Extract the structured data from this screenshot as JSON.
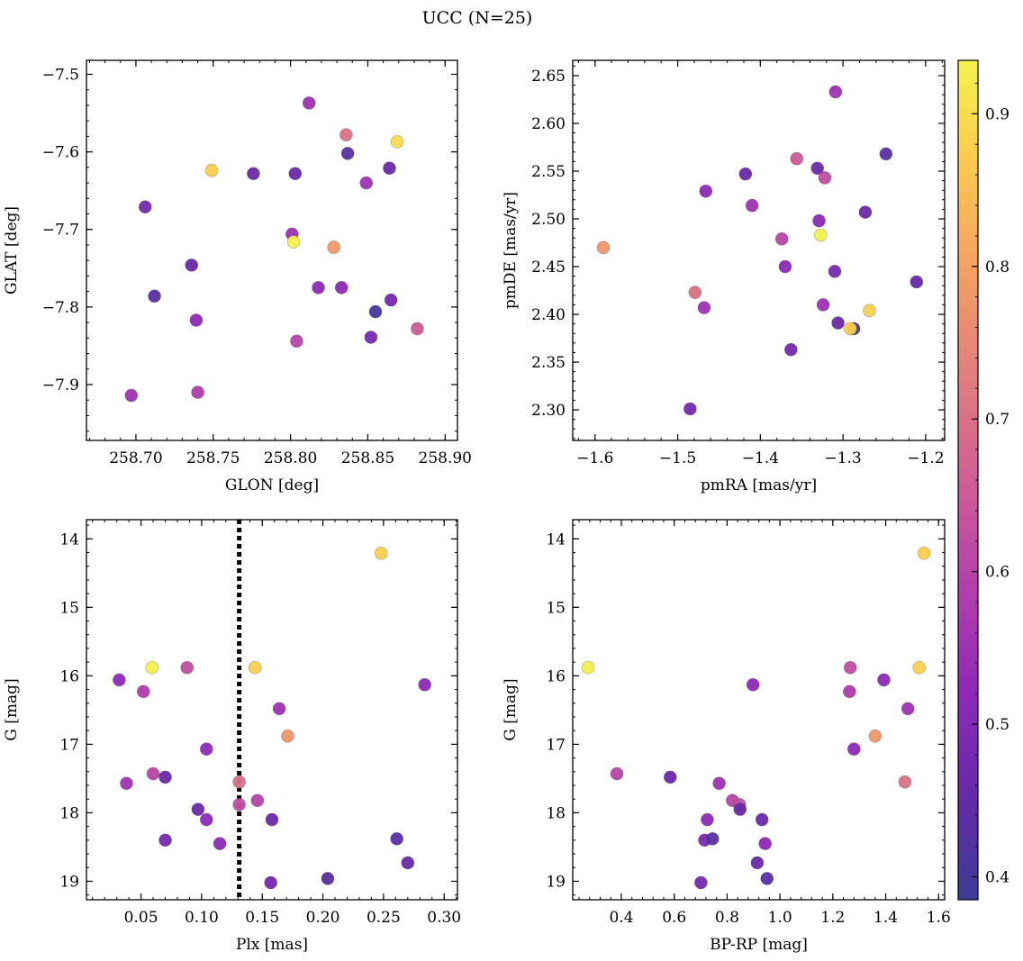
{
  "figure": {
    "title": "UCC (N=25)"
  },
  "colorbar": {
    "ticks": [
      "0.4",
      "0.5",
      "0.6",
      "0.7",
      "0.8",
      "0.9"
    ],
    "tick_values": [
      0.4,
      0.5,
      0.6,
      0.7,
      0.8,
      0.9
    ],
    "vmin": 0.385,
    "vmax": 0.935,
    "cmap_stops": [
      "#3c3c96",
      "#6629a8",
      "#8e2ab8",
      "#b440ab",
      "#cf5f95",
      "#e17e7e",
      "#f3a064",
      "#fdc84f",
      "#f5f24e"
    ]
  },
  "chart_data": [
    {
      "type": "scatter",
      "xlabel": "GLON [deg]",
      "ylabel": "GLAT [deg]",
      "xlim": [
        258.668,
        258.908
      ],
      "ylim": [
        -7.972,
        -7.482
      ],
      "xticks": [
        258.7,
        258.75,
        258.8,
        258.85,
        258.9
      ],
      "xtick_labels": [
        "258.70",
        "258.75",
        "258.80",
        "258.85",
        "258.90"
      ],
      "yticks": [
        -7.5,
        -7.6,
        -7.7,
        -7.8,
        -7.9
      ],
      "ytick_labels": [
        "−7.5",
        "−7.6",
        "−7.7",
        "−7.8",
        "−7.9"
      ],
      "y_inverted": false,
      "points": [
        {
          "x": 258.812,
          "y": -7.537,
          "c": 0.55
        },
        {
          "x": 258.836,
          "y": -7.578,
          "c": 0.7
        },
        {
          "x": 258.869,
          "y": -7.587,
          "c": 0.9
        },
        {
          "x": 258.837,
          "y": -7.602,
          "c": 0.43
        },
        {
          "x": 258.749,
          "y": -7.624,
          "c": 0.88
        },
        {
          "x": 258.776,
          "y": -7.628,
          "c": 0.46
        },
        {
          "x": 258.803,
          "y": -7.628,
          "c": 0.46
        },
        {
          "x": 258.864,
          "y": -7.621,
          "c": 0.46
        },
        {
          "x": 258.849,
          "y": -7.64,
          "c": 0.55
        },
        {
          "x": 258.706,
          "y": -7.671,
          "c": 0.48
        },
        {
          "x": 258.801,
          "y": -7.706,
          "c": 0.55
        },
        {
          "x": 258.802,
          "y": -7.716,
          "c": 0.93
        },
        {
          "x": 258.828,
          "y": -7.723,
          "c": 0.78
        },
        {
          "x": 258.736,
          "y": -7.746,
          "c": 0.46
        },
        {
          "x": 258.818,
          "y": -7.775,
          "c": 0.52
        },
        {
          "x": 258.833,
          "y": -7.775,
          "c": 0.52
        },
        {
          "x": 258.712,
          "y": -7.786,
          "c": 0.43
        },
        {
          "x": 258.865,
          "y": -7.791,
          "c": 0.48
        },
        {
          "x": 258.855,
          "y": -7.806,
          "c": 0.4
        },
        {
          "x": 258.739,
          "y": -7.817,
          "c": 0.52
        },
        {
          "x": 258.852,
          "y": -7.839,
          "c": 0.48
        },
        {
          "x": 258.804,
          "y": -7.844,
          "c": 0.6
        },
        {
          "x": 258.882,
          "y": -7.828,
          "c": 0.65
        },
        {
          "x": 258.74,
          "y": -7.91,
          "c": 0.58
        },
        {
          "x": 258.697,
          "y": -7.914,
          "c": 0.55
        }
      ]
    },
    {
      "type": "scatter",
      "xlabel": "pmRA [mas/yr]",
      "ylabel": "pmDE [mas/yr]",
      "xlim": [
        -1.627,
        -1.177
      ],
      "ylim": [
        2.268,
        2.666
      ],
      "xticks": [
        -1.6,
        -1.5,
        -1.4,
        -1.3,
        -1.2
      ],
      "xtick_labels": [
        "−1.6",
        "−1.5",
        "−1.4",
        "−1.3",
        "−1.2"
      ],
      "yticks": [
        2.3,
        2.35,
        2.4,
        2.45,
        2.5,
        2.55,
        2.6,
        2.65
      ],
      "ytick_labels": [
        "2.30",
        "2.35",
        "2.40",
        "2.45",
        "2.50",
        "2.55",
        "2.60",
        "2.65"
      ],
      "y_inverted": false,
      "points": [
        {
          "x": -1.309,
          "y": 2.633,
          "c": 0.55
        },
        {
          "x": -1.248,
          "y": 2.568,
          "c": 0.43
        },
        {
          "x": -1.356,
          "y": 2.563,
          "c": 0.65
        },
        {
          "x": -1.418,
          "y": 2.547,
          "c": 0.46
        },
        {
          "x": -1.331,
          "y": 2.553,
          "c": 0.46
        },
        {
          "x": -1.322,
          "y": 2.543,
          "c": 0.62
        },
        {
          "x": -1.466,
          "y": 2.529,
          "c": 0.52
        },
        {
          "x": -1.41,
          "y": 2.514,
          "c": 0.55
        },
        {
          "x": -1.273,
          "y": 2.507,
          "c": 0.46
        },
        {
          "x": -1.329,
          "y": 2.498,
          "c": 0.52
        },
        {
          "x": -1.327,
          "y": 2.483,
          "c": 0.93
        },
        {
          "x": -1.374,
          "y": 2.479,
          "c": 0.6
        },
        {
          "x": -1.59,
          "y": 2.47,
          "c": 0.78
        },
        {
          "x": -1.37,
          "y": 2.45,
          "c": 0.52
        },
        {
          "x": -1.31,
          "y": 2.445,
          "c": 0.48
        },
        {
          "x": -1.211,
          "y": 2.434,
          "c": 0.46
        },
        {
          "x": -1.479,
          "y": 2.423,
          "c": 0.7
        },
        {
          "x": -1.324,
          "y": 2.41,
          "c": 0.55
        },
        {
          "x": -1.468,
          "y": 2.407,
          "c": 0.55
        },
        {
          "x": -1.268,
          "y": 2.404,
          "c": 0.88
        },
        {
          "x": -1.306,
          "y": 2.391,
          "c": 0.46
        },
        {
          "x": -1.287,
          "y": 2.385,
          "c": 0.4
        },
        {
          "x": -1.291,
          "y": 2.385,
          "c": 0.88
        },
        {
          "x": -1.363,
          "y": 2.363,
          "c": 0.48
        },
        {
          "x": -1.485,
          "y": 2.301,
          "c": 0.48
        }
      ]
    },
    {
      "type": "scatter",
      "xlabel": "Plx [mas]",
      "ylabel": "G [mag]",
      "xlim": [
        0.005,
        0.311
      ],
      "ylim": [
        19.27,
        13.72
      ],
      "xticks": [
        0.05,
        0.1,
        0.15,
        0.2,
        0.25,
        0.3
      ],
      "xtick_labels": [
        "0.05",
        "0.10",
        "0.15",
        "0.20",
        "0.25",
        "0.30"
      ],
      "yticks": [
        14,
        15,
        16,
        17,
        18,
        19
      ],
      "ytick_labels": [
        "14",
        "15",
        "16",
        "17",
        "18",
        "19"
      ],
      "y_inverted": true,
      "vline": 0.131,
      "points": [
        {
          "x": 0.248,
          "y": 14.21,
          "c": 0.88
        },
        {
          "x": 0.059,
          "y": 15.88,
          "c": 0.93
        },
        {
          "x": 0.088,
          "y": 15.88,
          "c": 0.62
        },
        {
          "x": 0.144,
          "y": 15.88,
          "c": 0.88
        },
        {
          "x": 0.032,
          "y": 16.06,
          "c": 0.52
        },
        {
          "x": 0.052,
          "y": 16.23,
          "c": 0.58
        },
        {
          "x": 0.164,
          "y": 16.48,
          "c": 0.55
        },
        {
          "x": 0.284,
          "y": 16.13,
          "c": 0.52
        },
        {
          "x": 0.171,
          "y": 16.88,
          "c": 0.78
        },
        {
          "x": 0.104,
          "y": 17.07,
          "c": 0.52
        },
        {
          "x": 0.06,
          "y": 17.43,
          "c": 0.6
        },
        {
          "x": 0.07,
          "y": 17.48,
          "c": 0.46
        },
        {
          "x": 0.038,
          "y": 17.57,
          "c": 0.55
        },
        {
          "x": 0.131,
          "y": 17.55,
          "c": 0.7
        },
        {
          "x": 0.146,
          "y": 17.82,
          "c": 0.6
        },
        {
          "x": 0.131,
          "y": 17.88,
          "c": 0.62
        },
        {
          "x": 0.097,
          "y": 17.95,
          "c": 0.46
        },
        {
          "x": 0.104,
          "y": 18.1,
          "c": 0.52
        },
        {
          "x": 0.158,
          "y": 18.1,
          "c": 0.46
        },
        {
          "x": 0.07,
          "y": 18.4,
          "c": 0.48
        },
        {
          "x": 0.115,
          "y": 18.45,
          "c": 0.52
        },
        {
          "x": 0.261,
          "y": 18.38,
          "c": 0.43
        },
        {
          "x": 0.27,
          "y": 18.73,
          "c": 0.46
        },
        {
          "x": 0.157,
          "y": 19.02,
          "c": 0.48
        },
        {
          "x": 0.204,
          "y": 18.96,
          "c": 0.43
        }
      ]
    },
    {
      "type": "scatter",
      "xlabel": "BP-RP [mag]",
      "ylabel": "G [mag]",
      "xlim": [
        0.216,
        1.623
      ],
      "ylim": [
        19.27,
        13.72
      ],
      "xticks": [
        0.4,
        0.6,
        0.8,
        1.0,
        1.2,
        1.4,
        1.6
      ],
      "xtick_labels": [
        "0.4",
        "0.6",
        "0.8",
        "1.0",
        "1.2",
        "1.4",
        "1.6"
      ],
      "yticks": [
        14,
        15,
        16,
        17,
        18,
        19
      ],
      "ytick_labels": [
        "14",
        "15",
        "16",
        "17",
        "18",
        "19"
      ],
      "y_inverted": true,
      "points": [
        {
          "x": 1.545,
          "y": 14.21,
          "c": 0.88
        },
        {
          "x": 0.274,
          "y": 15.88,
          "c": 0.93
        },
        {
          "x": 1.266,
          "y": 15.88,
          "c": 0.62
        },
        {
          "x": 1.527,
          "y": 15.88,
          "c": 0.88
        },
        {
          "x": 0.898,
          "y": 16.13,
          "c": 0.52
        },
        {
          "x": 1.393,
          "y": 16.06,
          "c": 0.52
        },
        {
          "x": 1.263,
          "y": 16.23,
          "c": 0.58
        },
        {
          "x": 1.484,
          "y": 16.48,
          "c": 0.55
        },
        {
          "x": 1.36,
          "y": 16.88,
          "c": 0.78
        },
        {
          "x": 1.28,
          "y": 17.07,
          "c": 0.52
        },
        {
          "x": 0.383,
          "y": 17.43,
          "c": 0.6
        },
        {
          "x": 0.585,
          "y": 17.48,
          "c": 0.46
        },
        {
          "x": 0.77,
          "y": 17.57,
          "c": 0.55
        },
        {
          "x": 1.473,
          "y": 17.55,
          "c": 0.7
        },
        {
          "x": 0.82,
          "y": 17.82,
          "c": 0.6
        },
        {
          "x": 0.847,
          "y": 17.88,
          "c": 0.62
        },
        {
          "x": 0.849,
          "y": 17.95,
          "c": 0.46
        },
        {
          "x": 0.725,
          "y": 18.1,
          "c": 0.52
        },
        {
          "x": 0.932,
          "y": 18.1,
          "c": 0.46
        },
        {
          "x": 0.715,
          "y": 18.4,
          "c": 0.48
        },
        {
          "x": 0.745,
          "y": 18.38,
          "c": 0.43
        },
        {
          "x": 0.944,
          "y": 18.45,
          "c": 0.52
        },
        {
          "x": 0.914,
          "y": 18.73,
          "c": 0.46
        },
        {
          "x": 0.701,
          "y": 19.02,
          "c": 0.48
        },
        {
          "x": 0.951,
          "y": 18.96,
          "c": 0.43
        }
      ]
    }
  ]
}
